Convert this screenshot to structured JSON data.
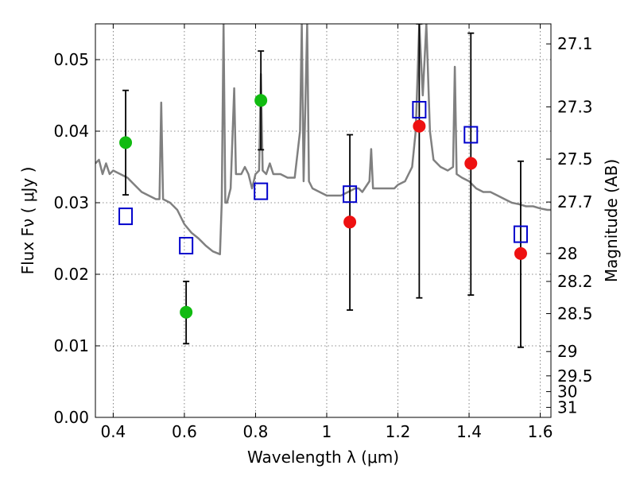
{
  "chart_data": {
    "type": "scatter",
    "xlabel": "Wavelength  λ (μm)",
    "ylabel": "Flux  Fν  ( μJy )",
    "y2label": "Magnitude (AB)",
    "xlim": [
      0.35,
      1.63
    ],
    "ylim": [
      0.0,
      0.055
    ],
    "grid": true,
    "x_ticks": [
      0.4,
      0.6,
      0.8,
      1.0,
      1.2,
      1.4,
      1.6
    ],
    "x_tick_labels": [
      "0.4",
      "0.6",
      "0.8",
      "1",
      "1.2",
      "1.4",
      "1.6"
    ],
    "y_ticks": [
      0.0,
      0.01,
      0.02,
      0.03,
      0.04,
      0.05
    ],
    "y_tick_labels": [
      "0.00",
      "0.01",
      "0.02",
      "0.03",
      "0.04",
      "0.05"
    ],
    "y2_ticks": [
      {
        "flux": 0.0522,
        "label": "27.1"
      },
      {
        "flux": 0.0434,
        "label": "27.3"
      },
      {
        "flux": 0.0361,
        "label": "27.5"
      },
      {
        "flux": 0.0301,
        "label": "27.7"
      },
      {
        "flux": 0.0229,
        "label": "28"
      },
      {
        "flux": 0.019,
        "label": "28.2"
      },
      {
        "flux": 0.0145,
        "label": "28.5"
      },
      {
        "flux": 0.0092,
        "label": "29"
      },
      {
        "flux": 0.0058,
        "label": "29.5"
      },
      {
        "flux": 0.0036,
        "label": "30"
      },
      {
        "flux": 0.0014,
        "label": "31"
      }
    ],
    "series": [
      {
        "kind": "line",
        "color": "#808080",
        "points": [
          [
            0.35,
            0.0355
          ],
          [
            0.36,
            0.036
          ],
          [
            0.37,
            0.034
          ],
          [
            0.38,
            0.0355
          ],
          [
            0.39,
            0.034
          ],
          [
            0.4,
            0.0345
          ],
          [
            0.42,
            0.034
          ],
          [
            0.44,
            0.0335
          ],
          [
            0.46,
            0.0325
          ],
          [
            0.48,
            0.0315
          ],
          [
            0.5,
            0.031
          ],
          [
            0.52,
            0.0305
          ],
          [
            0.53,
            0.0305
          ],
          [
            0.535,
            0.044
          ],
          [
            0.54,
            0.0305
          ],
          [
            0.56,
            0.03
          ],
          [
            0.58,
            0.029
          ],
          [
            0.6,
            0.027
          ],
          [
            0.62,
            0.0258
          ],
          [
            0.64,
            0.025
          ],
          [
            0.66,
            0.024
          ],
          [
            0.68,
            0.0232
          ],
          [
            0.7,
            0.0228
          ],
          [
            0.705,
            0.03
          ],
          [
            0.71,
            0.055
          ],
          [
            0.715,
            0.03
          ],
          [
            0.72,
            0.03
          ],
          [
            0.73,
            0.032
          ],
          [
            0.74,
            0.046
          ],
          [
            0.745,
            0.034
          ],
          [
            0.76,
            0.034
          ],
          [
            0.77,
            0.035
          ],
          [
            0.78,
            0.034
          ],
          [
            0.79,
            0.032
          ],
          [
            0.8,
            0.034
          ],
          [
            0.81,
            0.0345
          ],
          [
            0.815,
            0.048
          ],
          [
            0.82,
            0.0345
          ],
          [
            0.83,
            0.034
          ],
          [
            0.84,
            0.0355
          ],
          [
            0.85,
            0.034
          ],
          [
            0.87,
            0.034
          ],
          [
            0.89,
            0.0335
          ],
          [
            0.91,
            0.0335
          ],
          [
            0.925,
            0.04
          ],
          [
            0.93,
            0.055
          ],
          [
            0.935,
            0.033
          ],
          [
            0.945,
            0.055
          ],
          [
            0.95,
            0.033
          ],
          [
            0.96,
            0.032
          ],
          [
            0.98,
            0.0315
          ],
          [
            1.0,
            0.031
          ],
          [
            1.02,
            0.031
          ],
          [
            1.04,
            0.031
          ],
          [
            1.06,
            0.0315
          ],
          [
            1.08,
            0.032
          ],
          [
            1.09,
            0.032
          ],
          [
            1.1,
            0.0315
          ],
          [
            1.12,
            0.033
          ],
          [
            1.125,
            0.0375
          ],
          [
            1.13,
            0.032
          ],
          [
            1.15,
            0.032
          ],
          [
            1.17,
            0.032
          ],
          [
            1.19,
            0.032
          ],
          [
            1.2,
            0.0325
          ],
          [
            1.22,
            0.033
          ],
          [
            1.24,
            0.035
          ],
          [
            1.25,
            0.04
          ],
          [
            1.26,
            0.055
          ],
          [
            1.27,
            0.045
          ],
          [
            1.28,
            0.055
          ],
          [
            1.29,
            0.04
          ],
          [
            1.3,
            0.036
          ],
          [
            1.32,
            0.035
          ],
          [
            1.34,
            0.0345
          ],
          [
            1.355,
            0.035
          ],
          [
            1.36,
            0.049
          ],
          [
            1.365,
            0.034
          ],
          [
            1.38,
            0.0335
          ],
          [
            1.4,
            0.033
          ],
          [
            1.42,
            0.032
          ],
          [
            1.44,
            0.0315
          ],
          [
            1.46,
            0.0315
          ],
          [
            1.48,
            0.031
          ],
          [
            1.5,
            0.0305
          ],
          [
            1.52,
            0.03
          ],
          [
            1.54,
            0.0298
          ],
          [
            1.56,
            0.0295
          ],
          [
            1.58,
            0.0295
          ],
          [
            1.6,
            0.0292
          ],
          [
            1.62,
            0.029
          ],
          [
            1.63,
            0.029
          ]
        ]
      },
      {
        "kind": "points",
        "marker": "circle",
        "color": "#11bb11",
        "points": [
          {
            "x": 0.435,
            "y": 0.0384,
            "yerr": [
              0.0311,
              0.0457
            ]
          },
          {
            "x": 0.605,
            "y": 0.0147,
            "yerr": [
              0.0103,
              0.019
            ]
          },
          {
            "x": 0.815,
            "y": 0.0443,
            "yerr": [
              0.0374,
              0.0512
            ]
          }
        ]
      },
      {
        "kind": "points",
        "marker": "circle",
        "color": "#ee1111",
        "points": [
          {
            "x": 1.065,
            "y": 0.0273,
            "yerr": [
              0.015,
              0.0395
            ]
          },
          {
            "x": 1.26,
            "y": 0.0407,
            "yerr": [
              0.0167,
              0.055
            ]
          },
          {
            "x": 1.405,
            "y": 0.0355,
            "yerr": [
              0.0171,
              0.0537
            ]
          },
          {
            "x": 1.545,
            "y": 0.0229,
            "yerr": [
              0.0098,
              0.0358
            ]
          }
        ]
      },
      {
        "kind": "points",
        "marker": "open-square",
        "color": "#0000cc",
        "points": [
          {
            "x": 0.435,
            "y": 0.0281
          },
          {
            "x": 0.605,
            "y": 0.024
          },
          {
            "x": 0.815,
            "y": 0.0316
          },
          {
            "x": 1.065,
            "y": 0.0312
          },
          {
            "x": 1.26,
            "y": 0.043
          },
          {
            "x": 1.405,
            "y": 0.0395
          },
          {
            "x": 1.545,
            "y": 0.0256
          }
        ]
      }
    ]
  }
}
